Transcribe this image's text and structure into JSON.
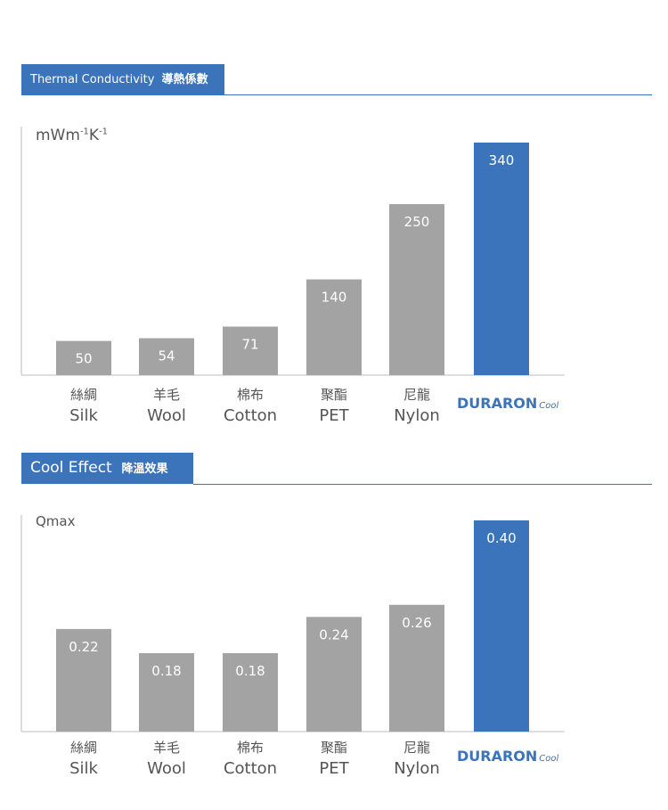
{
  "colors": {
    "accent": "#3b74bb",
    "bar": "#a3a3a3",
    "axis": "#bbbbbb"
  },
  "brand": {
    "name": "DURARON",
    "suffix": "Cool"
  },
  "chart_data": [
    {
      "type": "bar",
      "title": "Thermal Conductivity",
      "title_zh": "導熱係數",
      "ylabel": "mWm",
      "ylabel_sup": "-1",
      "ylabel_k": "K",
      "ylabel_k_sup": "-1",
      "ylim": [
        0,
        340
      ],
      "categories": [
        {
          "zh": "絲綢",
          "en": "Silk"
        },
        {
          "zh": "羊毛",
          "en": "Wool"
        },
        {
          "zh": "棉布",
          "en": "Cotton"
        },
        {
          "zh": "聚酯",
          "en": "PET"
        },
        {
          "zh": "尼龍",
          "en": "Nylon"
        },
        {
          "brand": true
        }
      ],
      "values": [
        50,
        54,
        71,
        140,
        250,
        340
      ],
      "value_labels": [
        "50",
        "54",
        "71",
        "140",
        "250",
        "340"
      ],
      "highlight_index": 5
    },
    {
      "type": "bar",
      "title": "Cool Effect",
      "title_zh": "降溫效果",
      "ylabel": "Qmax",
      "ylim": [
        0.05,
        0.4
      ],
      "categories": [
        {
          "zh": "絲綢",
          "en": "Silk"
        },
        {
          "zh": "羊毛",
          "en": "Wool"
        },
        {
          "zh": "棉布",
          "en": "Cotton"
        },
        {
          "zh": "聚酯",
          "en": "PET"
        },
        {
          "zh": "尼龍",
          "en": "Nylon"
        },
        {
          "brand": true
        }
      ],
      "values": [
        0.22,
        0.18,
        0.18,
        0.24,
        0.26,
        0.4
      ],
      "value_labels": [
        "0.22",
        "0.18",
        "0.18",
        "0.24",
        "0.26",
        "0.40"
      ],
      "highlight_index": 5
    }
  ]
}
